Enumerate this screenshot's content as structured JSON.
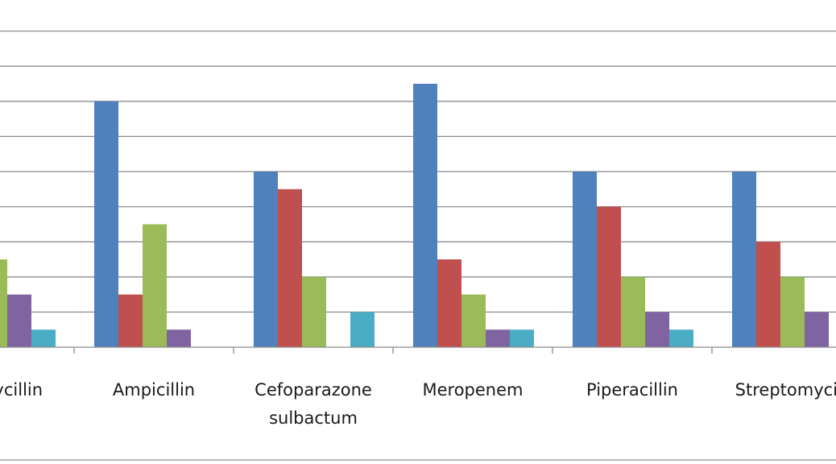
{
  "chart_data": {
    "type": "bar",
    "categories": [
      [
        "Amoxycillin"
      ],
      [
        "Ampicillin"
      ],
      [
        "Cefoparazone",
        "sulbactum"
      ],
      [
        "Meropenem"
      ],
      [
        "Piperacillin"
      ],
      [
        "Streptomycin"
      ]
    ],
    "series": [
      {
        "color": "#4F81BD",
        "values": [
          null,
          14,
          10,
          15,
          10,
          10
        ]
      },
      {
        "color": "#C0504D",
        "values": [
          null,
          3,
          9,
          5,
          8,
          6
        ]
      },
      {
        "color": "#9BBB59",
        "values": [
          5,
          7,
          4,
          3,
          4,
          4
        ]
      },
      {
        "color": "#8064A2",
        "values": [
          3,
          1,
          null,
          1,
          2,
          2
        ]
      },
      {
        "color": "#4BACC6",
        "values": [
          1,
          null,
          2,
          1,
          1,
          null
        ]
      }
    ],
    "ylim": [
      0,
      20
    ],
    "grid": true,
    "legend": "none",
    "gridline_color": "#8c8c8c",
    "axis_color": "#8c8c8c"
  }
}
